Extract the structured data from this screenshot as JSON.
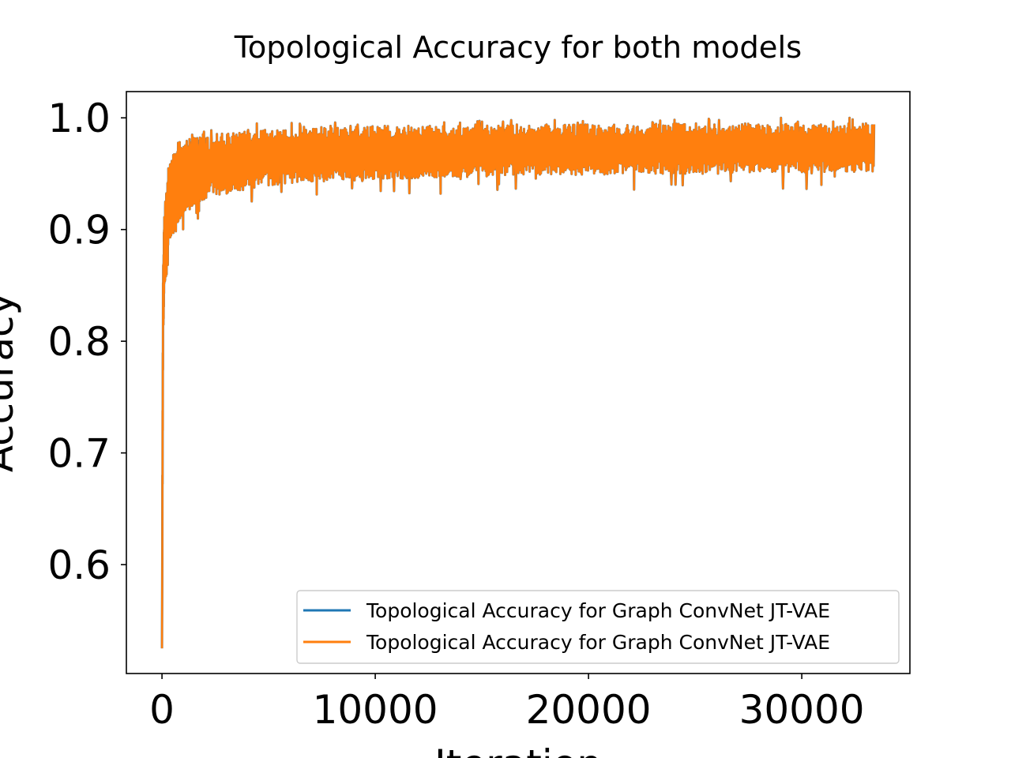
{
  "chart_data": {
    "type": "line",
    "title": "Topological Accuracy for both models",
    "xlabel": "Iteration",
    "ylabel": "Accuracy",
    "xlim": [
      -1670,
      35070
    ],
    "ylim": [
      0.5025,
      1.0235
    ],
    "xticks": [
      {
        "value": 0,
        "label": "0"
      },
      {
        "value": 10000,
        "label": "10000"
      },
      {
        "value": 20000,
        "label": "20000"
      },
      {
        "value": 30000,
        "label": "30000"
      }
    ],
    "yticks": [
      {
        "value": 0.6,
        "label": "0.6"
      },
      {
        "value": 0.7,
        "label": "0.7"
      },
      {
        "value": 0.8,
        "label": "0.8"
      },
      {
        "value": 0.9,
        "label": "0.9"
      },
      {
        "value": 1.0,
        "label": "1.0"
      }
    ],
    "grid": false,
    "legend_position": "lower-right",
    "series": [
      {
        "name": "Topological Accuracy for Graph ConvNet JT-VAE",
        "color": "#1f77b4",
        "envelope": {
          "x": [
            0,
            50,
            100,
            200,
            300,
            500,
            700,
            1000,
            1500,
            2000,
            3000,
            4000,
            5000,
            6000,
            8000,
            10000,
            12000,
            14000,
            16000,
            18000,
            20000,
            22000,
            24000,
            26000,
            28000,
            30000,
            32000,
            33400
          ],
          "upper": [
            0.56,
            0.86,
            0.91,
            0.93,
            0.955,
            0.965,
            0.972,
            0.978,
            0.982,
            0.984,
            0.987,
            0.989,
            0.99,
            0.991,
            0.992,
            0.993,
            0.993,
            0.993,
            0.994,
            0.994,
            0.994,
            0.994,
            0.995,
            0.995,
            0.995,
            0.995,
            0.995,
            0.995
          ],
          "lower": [
            0.525,
            0.8,
            0.84,
            0.86,
            0.885,
            0.895,
            0.905,
            0.915,
            0.922,
            0.927,
            0.932,
            0.936,
            0.939,
            0.941,
            0.943,
            0.945,
            0.946,
            0.947,
            0.948,
            0.949,
            0.949,
            0.95,
            0.95,
            0.95,
            0.951,
            0.951,
            0.951,
            0.951
          ]
        }
      },
      {
        "name": "Topological Accuracy for Graph ConvNet JT-VAE",
        "color": "#ff7f0e",
        "envelope": {
          "x": [
            0,
            50,
            100,
            200,
            300,
            500,
            700,
            1000,
            1500,
            2000,
            3000,
            4000,
            5000,
            6000,
            8000,
            10000,
            12000,
            14000,
            16000,
            18000,
            20000,
            22000,
            24000,
            26000,
            28000,
            30000,
            32000,
            33400
          ],
          "upper": [
            0.56,
            0.86,
            0.91,
            0.93,
            0.955,
            0.965,
            0.972,
            0.978,
            0.982,
            0.984,
            0.987,
            0.989,
            0.99,
            0.991,
            0.992,
            0.993,
            0.993,
            0.993,
            0.994,
            0.994,
            0.994,
            0.994,
            0.995,
            0.995,
            0.995,
            0.995,
            0.995,
            0.995
          ],
          "lower": [
            0.525,
            0.8,
            0.84,
            0.86,
            0.885,
            0.895,
            0.905,
            0.915,
            0.922,
            0.927,
            0.932,
            0.936,
            0.939,
            0.941,
            0.943,
            0.945,
            0.946,
            0.947,
            0.948,
            0.949,
            0.949,
            0.95,
            0.95,
            0.95,
            0.951,
            0.951,
            0.951,
            0.951
          ]
        }
      }
    ]
  }
}
